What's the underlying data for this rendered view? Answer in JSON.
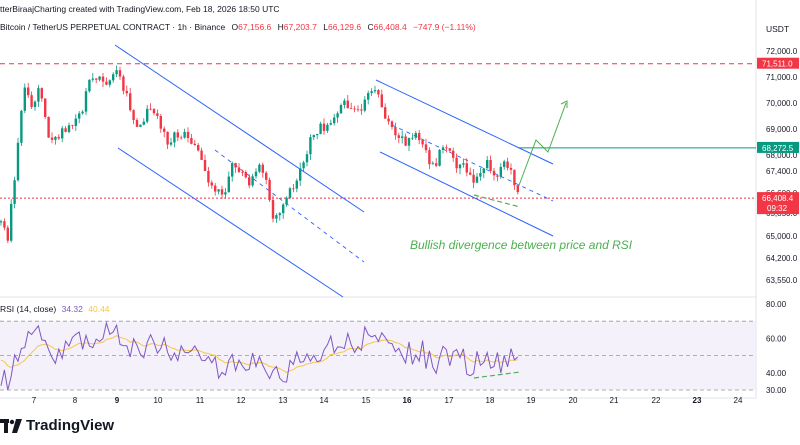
{
  "header": {
    "text": "tterBiraajCharting created with TradingView.com, Feb 18, 2026 18:50 UTC"
  },
  "symbol": {
    "name": "Bitcoin / TetherUS PERPETUAL CONTRACT · 1h · Binance",
    "o_label": "O",
    "o_val": "67,156.6",
    "h_label": "H",
    "h_val": "67,203.7",
    "l_label": "L",
    "l_val": "66,129.6",
    "c_label": "C",
    "c_val": "66,408.4",
    "change": "−747.9 (−1.11%)"
  },
  "currency": "USDT",
  "rsi_label": {
    "name": "RSI (14, close)",
    "v1": "34.32",
    "v2": "40.44"
  },
  "brand": "TradingView",
  "colors": {
    "up": "#089981",
    "down": "#f23645",
    "channel": "#2962ff",
    "annotation": "#4caf50",
    "rsi": "#7e57c2",
    "rsi_ma": "#f7c548",
    "rsi_band": "#ede7f6"
  },
  "chart_data": {
    "type": "candlestick",
    "price_axis": {
      "ticks": [
        "72,000.0",
        "71,000.0",
        "70,000.0",
        "69,000.0",
        "68,000.0",
        "67,400.0",
        "66,600.0",
        "65,850.0",
        "65,000.0",
        "64,200.0",
        "63,550.0"
      ],
      "labels": [
        {
          "text": "71,511.0",
          "value": 71511.0,
          "color": "#f23645"
        },
        {
          "text": "68,272.5",
          "value": 68272.5,
          "color": "#089981"
        },
        {
          "text": "66,408.4",
          "sub": "09:32",
          "value": 66408.4,
          "color": "#f23645"
        }
      ]
    },
    "x_ticks": [
      "7",
      "8",
      "9",
      "10",
      "11",
      "12",
      "13",
      "14",
      "15",
      "16",
      "17",
      "18",
      "19",
      "20",
      "21",
      "22",
      "23",
      "24"
    ],
    "horizontal_lines": [
      {
        "value": 71511.0,
        "style": "dashed",
        "color": "#f23645"
      },
      {
        "value": 68272.5,
        "style": "solid",
        "color": "#089981"
      },
      {
        "value": 66408.4,
        "style": "dotted",
        "color": "#f23645"
      }
    ],
    "annotation": "Bullish divergence between price and RSI",
    "rsi_axis": {
      "ticks": [
        "80.00",
        "60.00",
        "40.00",
        "30.00"
      ],
      "band": [
        30,
        70
      ],
      "mid": 50
    }
  }
}
